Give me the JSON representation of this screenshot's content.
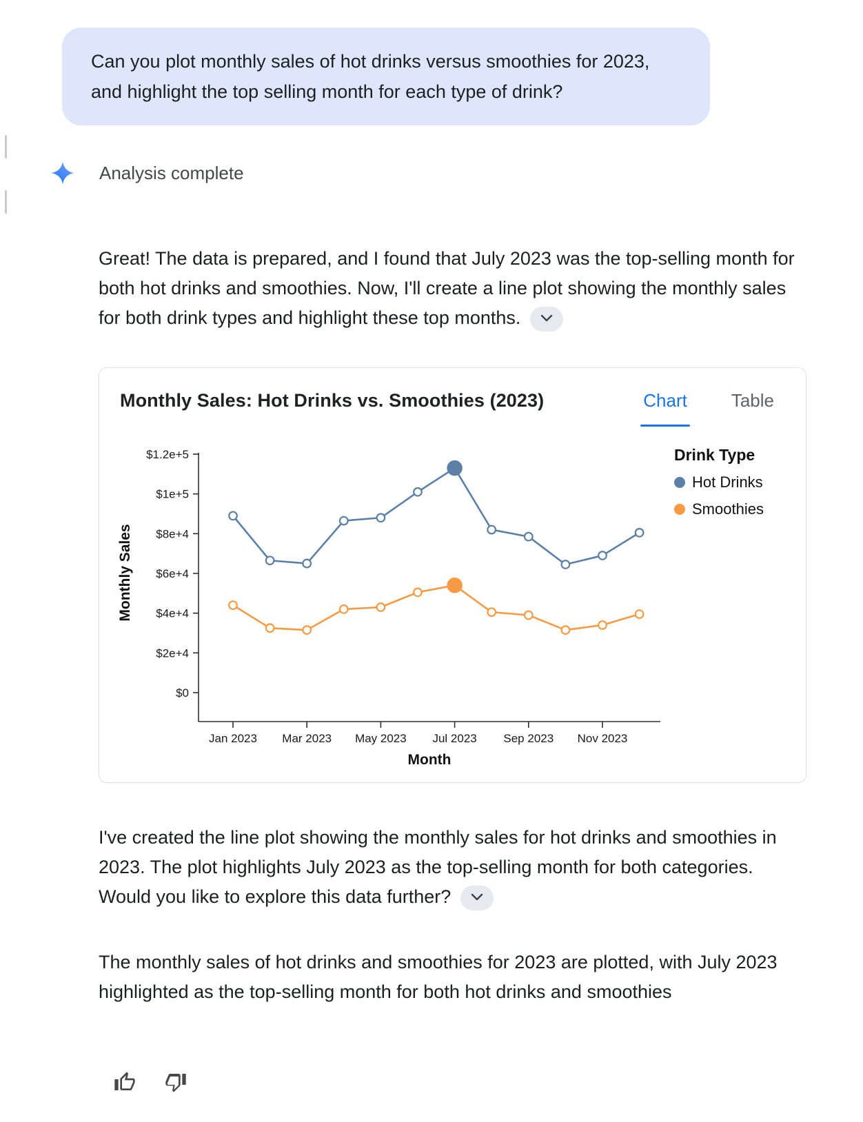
{
  "colors": {
    "accent_blue": "#1a73e8",
    "user_bubble_bg": "#dee6fb",
    "text_primary": "#1f1f1f",
    "tab_inactive": "#5f6368",
    "axis": "#2e2e2e",
    "hot_drinks": "#5b7fa6",
    "smoothies": "#f79a44"
  },
  "icons": {
    "sparkle": "gemini-sparkle-icon",
    "expand": "chevron-down-icon",
    "thumbs_up": "thumbs-up-icon",
    "thumbs_down": "thumbs-down-icon"
  },
  "user_message": {
    "text": "Can you plot monthly sales of hot drinks versus smoothies for 2023, and highlight the top selling month for each type of drink?"
  },
  "status": {
    "label": "Analysis complete"
  },
  "assistant": {
    "intro_text": "Great! The data is prepared, and I found that July 2023 was the top-selling month for both hot drinks and smoothies. Now, I'll create a line plot showing the monthly sales for both drink types and highlight these top months.",
    "followup_text": "I've created the line plot showing the monthly sales for hot drinks and smoothies in 2023. The plot highlights July 2023 as the top-selling month for both categories. Would you like to explore this data further?",
    "summary_text": "The monthly sales of hot drinks and smoothies for 2023 are plotted, with July 2023 highlighted as the top-selling month for both hot drinks and smoothies"
  },
  "chart_card": {
    "title": "Monthly Sales: Hot Drinks vs. Smoothies (2023)",
    "tabs": [
      {
        "label": "Chart",
        "active": true
      },
      {
        "label": "Table",
        "active": false
      }
    ],
    "legend": {
      "title": "Drink Type",
      "items": [
        {
          "label": "Hot Drinks",
          "color": "#5b7fa6"
        },
        {
          "label": "Smoothies",
          "color": "#f79a44"
        }
      ]
    }
  },
  "chart_data": {
    "type": "line",
    "title": "Monthly Sales: Hot Drinks vs. Smoothies (2023)",
    "xlabel": "Month",
    "ylabel": "Monthly Sales",
    "x": [
      "Jan 2023",
      "Feb 2023",
      "Mar 2023",
      "Apr 2023",
      "May 2023",
      "Jun 2023",
      "Jul 2023",
      "Aug 2023",
      "Sep 2023",
      "Oct 2023",
      "Nov 2023",
      "Dec 2023"
    ],
    "x_tick_labels": [
      "Jan 2023",
      "Mar 2023",
      "May 2023",
      "Jul 2023",
      "Sep 2023",
      "Nov 2023"
    ],
    "y_ticks": [
      0,
      20000,
      40000,
      60000,
      80000,
      100000,
      120000
    ],
    "y_tick_labels": [
      "$0",
      "$2e+4",
      "$4e+4",
      "$6e+4",
      "$8e+4",
      "$1e+5",
      "$1.2e+5"
    ],
    "ylim": [
      0,
      125000
    ],
    "grid": false,
    "legend_position": "right",
    "series": [
      {
        "name": "Hot Drinks",
        "color": "#5b7fa6",
        "values": [
          89000,
          66500,
          65000,
          86500,
          88000,
          101000,
          113000,
          82000,
          78500,
          64500,
          69000,
          80500
        ],
        "highlight_index": 6,
        "highlight_label": "Jul 2023"
      },
      {
        "name": "Smoothies",
        "color": "#f79a44",
        "values": [
          44000,
          32500,
          31500,
          42000,
          43000,
          50500,
          54000,
          40500,
          39000,
          31500,
          34000,
          39500
        ],
        "highlight_index": 6,
        "highlight_label": "Jul 2023"
      }
    ]
  }
}
